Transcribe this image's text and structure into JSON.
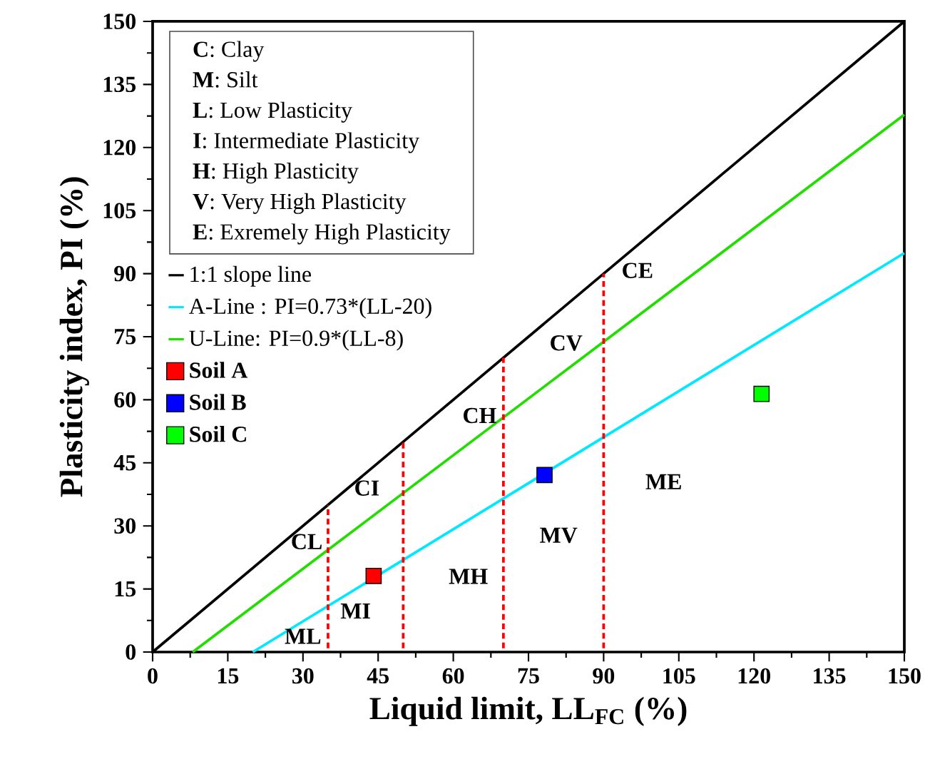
{
  "chart_data": {
    "type": "line",
    "xlabel": "Liquid limit, LL$_{FC}$ (%)",
    "ylabel": "Plasticity index, PI (%)",
    "xlim": [
      0,
      150
    ],
    "ylim": [
      0,
      150
    ],
    "xticks": [
      0,
      15,
      30,
      45,
      60,
      75,
      90,
      105,
      120,
      135,
      150
    ],
    "yticks": [
      0,
      15,
      30,
      45,
      60,
      75,
      90,
      105,
      120,
      135,
      150
    ],
    "legend": "left",
    "series": [
      {
        "name": "1:1 slope line",
        "color": "#000000",
        "x": [
          0,
          150
        ],
        "values": [
          0,
          150
        ]
      },
      {
        "name": "A-Line : PI=0.73*(LL-20)",
        "color": "#00e8ff",
        "x": [
          20,
          150
        ],
        "values": [
          0,
          94.9
        ]
      },
      {
        "name": "U-Line: PI=0.9*(LL-8)",
        "color": "#22dd00",
        "x": [
          8,
          150
        ],
        "values": [
          0,
          127.8
        ]
      },
      {
        "name": "Soil A",
        "type": "scatter",
        "marker": "square",
        "color": "#ff0000",
        "x": [
          44.1
        ],
        "values": [
          18.1
        ]
      },
      {
        "name": "Soil B",
        "type": "scatter",
        "marker": "square",
        "color": "#0000ff",
        "x": [
          78.2
        ],
        "values": [
          42.1
        ]
      },
      {
        "name": "Soil C",
        "type": "scatter",
        "marker": "square",
        "color": "#00ff00",
        "x": [
          121.5
        ],
        "values": [
          61.4
        ]
      },
      {
        "type": "line",
        "line_style": "dashed",
        "color": "#ff0000",
        "x": [
          35,
          35
        ],
        "values": [
          0,
          35
        ]
      },
      {
        "type": "line",
        "line_style": "dashed",
        "color": "#ff0000",
        "x": [
          50,
          50
        ],
        "values": [
          0,
          50
        ]
      },
      {
        "type": "line",
        "line_style": "dashed",
        "color": "#ff0000",
        "x": [
          70,
          70
        ],
        "values": [
          0,
          70
        ]
      },
      {
        "type": "line",
        "line_style": "dashed",
        "color": "#ff0000",
        "x": [
          90,
          90
        ],
        "values": [
          0,
          90
        ]
      }
    ],
    "annotations": [
      "**C**: Clay",
      "**M**: Silt",
      "**L**: Low Plasticity",
      "**I**: Intermediate Plasticity",
      "**H**: High Plasticity",
      "**V**: Very High Plasticity",
      "**E**: Exremely High Plasticity",
      "CL",
      "CI",
      "CH",
      "CV",
      "CE",
      "ML",
      "MI",
      "MH",
      "MV",
      "ME"
    ]
  }
}
